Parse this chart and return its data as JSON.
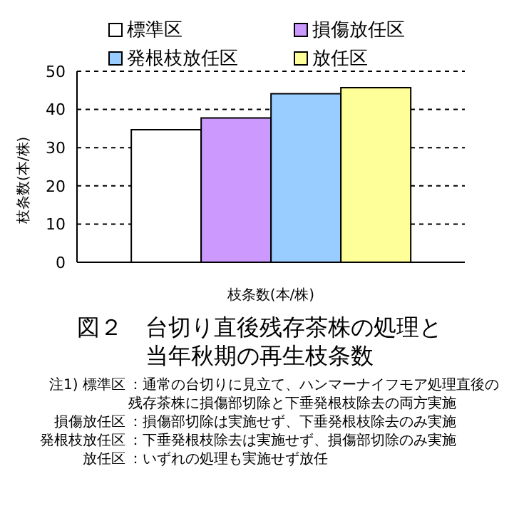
{
  "chart_data": {
    "type": "bar",
    "title": "図２　台切り直後残存茶株の処理と当年秋期の再生枝条数",
    "xlabel": "枝条数(本/株)",
    "ylabel": "枝条数(本/株)",
    "categories": [
      null
    ],
    "series": [
      {
        "name": "標準区",
        "color": "#ffffff",
        "values": [
          34.7
        ]
      },
      {
        "name": "損傷放任区",
        "color": "#cc99ff",
        "values": [
          37.8
        ]
      },
      {
        "name": "発根枝放任区",
        "color": "#99ccff",
        "values": [
          44.1
        ]
      },
      {
        "name": "放任区",
        "color": "#ffff99",
        "values": [
          45.7
        ]
      }
    ],
    "ylim": [
      0,
      50
    ],
    "yticks": [
      0,
      10,
      20,
      30,
      40,
      50
    ],
    "grid": "y",
    "legend": "top",
    "annotations": [
      "注1) 標準区：通常の台切りに見立て、ハンマーナイフモア処理直後の残存茶株に損傷部切除と下垂発根枝除去の両方実施",
      "損傷放任区：損傷部切除は実施せず、下垂発根枝除去のみ実施",
      "発根枝放任区：下垂発根枝除去は実施せず、損傷部切除のみ実施",
      "放任区：いずれの処理も実施せず放任"
    ]
  }
}
